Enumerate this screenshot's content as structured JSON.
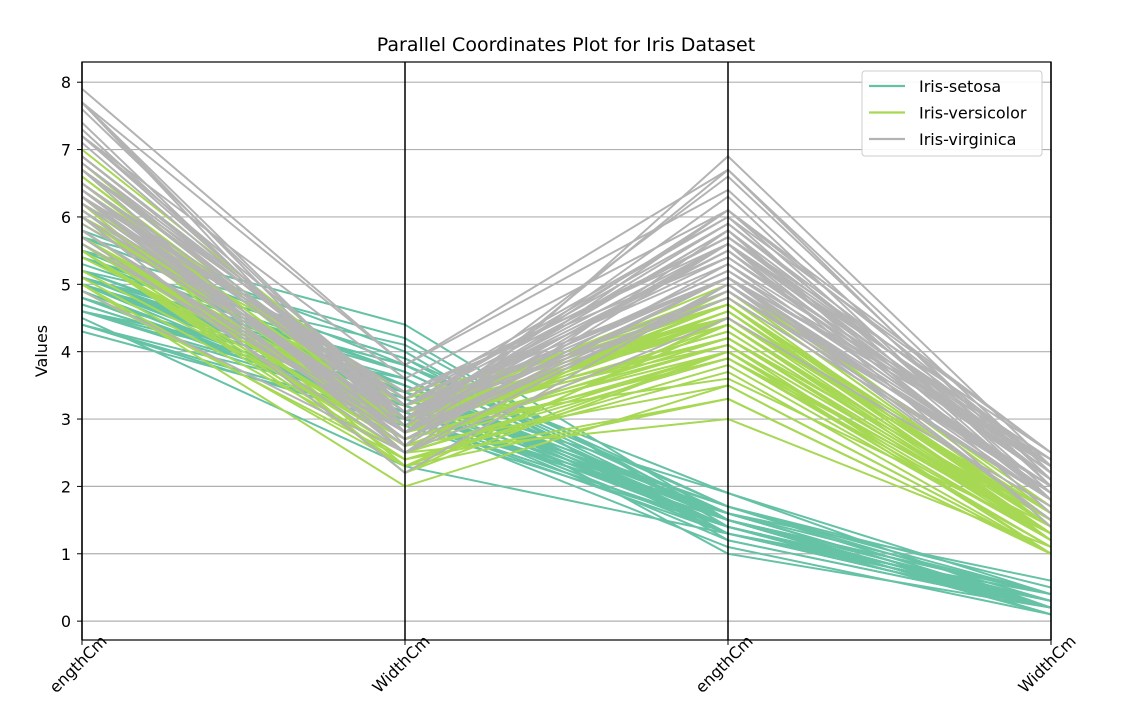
{
  "chart_data": {
    "type": "line",
    "title": "Parallel Coordinates Plot for Iris Dataset",
    "xlabel": "",
    "ylabel": "Values",
    "x": [
      "SepalLengthCm",
      "SepalWidthCm",
      "PetalLengthCm",
      "PetalWidthCm"
    ],
    "x_tick_labels_visible": [
      "engthCm",
      "WidthCm",
      "engthCm",
      "WidthCm"
    ],
    "ylim": [
      -0.28,
      8.3
    ],
    "yticks": [
      "0",
      "1",
      "2",
      "3",
      "4",
      "5",
      "6",
      "7",
      "8"
    ],
    "grid": "horizontal",
    "legend_position": "top-right",
    "series": [
      {
        "name": "Iris-setosa",
        "color": "#66c2a5",
        "lines": [
          [
            5.1,
            3.5,
            1.4,
            0.2
          ],
          [
            4.9,
            3.0,
            1.4,
            0.2
          ],
          [
            4.7,
            3.2,
            1.3,
            0.2
          ],
          [
            4.6,
            3.1,
            1.5,
            0.2
          ],
          [
            5.0,
            3.6,
            1.4,
            0.2
          ],
          [
            5.4,
            3.9,
            1.7,
            0.4
          ],
          [
            4.6,
            3.4,
            1.4,
            0.3
          ],
          [
            5.0,
            3.4,
            1.5,
            0.2
          ],
          [
            4.4,
            2.9,
            1.4,
            0.2
          ],
          [
            4.9,
            3.1,
            1.5,
            0.1
          ],
          [
            5.4,
            3.7,
            1.5,
            0.2
          ],
          [
            4.8,
            3.4,
            1.6,
            0.2
          ],
          [
            4.8,
            3.0,
            1.4,
            0.1
          ],
          [
            4.3,
            3.0,
            1.1,
            0.1
          ],
          [
            5.8,
            4.0,
            1.2,
            0.2
          ],
          [
            5.7,
            4.4,
            1.5,
            0.4
          ],
          [
            5.4,
            3.9,
            1.3,
            0.4
          ],
          [
            5.1,
            3.5,
            1.4,
            0.3
          ],
          [
            5.7,
            3.8,
            1.7,
            0.3
          ],
          [
            5.1,
            3.8,
            1.5,
            0.3
          ],
          [
            5.4,
            3.4,
            1.7,
            0.2
          ],
          [
            5.1,
            3.7,
            1.5,
            0.4
          ],
          [
            4.6,
            3.6,
            1.0,
            0.2
          ],
          [
            5.1,
            3.3,
            1.7,
            0.5
          ],
          [
            4.8,
            3.4,
            1.9,
            0.2
          ],
          [
            5.0,
            3.0,
            1.6,
            0.2
          ],
          [
            5.0,
            3.4,
            1.6,
            0.4
          ],
          [
            5.2,
            3.5,
            1.5,
            0.2
          ],
          [
            5.2,
            3.4,
            1.4,
            0.2
          ],
          [
            4.7,
            3.2,
            1.6,
            0.2
          ],
          [
            4.8,
            3.1,
            1.6,
            0.2
          ],
          [
            5.4,
            3.4,
            1.5,
            0.4
          ],
          [
            5.2,
            4.1,
            1.5,
            0.1
          ],
          [
            5.5,
            4.2,
            1.4,
            0.2
          ],
          [
            4.9,
            3.1,
            1.5,
            0.1
          ],
          [
            5.0,
            3.2,
            1.2,
            0.2
          ],
          [
            5.5,
            3.5,
            1.3,
            0.2
          ],
          [
            4.9,
            3.1,
            1.5,
            0.1
          ],
          [
            4.4,
            3.0,
            1.3,
            0.2
          ],
          [
            5.1,
            3.4,
            1.5,
            0.2
          ],
          [
            5.0,
            3.5,
            1.3,
            0.3
          ],
          [
            4.5,
            2.3,
            1.3,
            0.3
          ],
          [
            4.4,
            3.2,
            1.3,
            0.2
          ],
          [
            5.0,
            3.5,
            1.6,
            0.6
          ],
          [
            5.1,
            3.8,
            1.9,
            0.4
          ],
          [
            4.8,
            3.0,
            1.4,
            0.3
          ],
          [
            5.1,
            3.8,
            1.6,
            0.2
          ],
          [
            4.6,
            3.2,
            1.4,
            0.2
          ],
          [
            5.3,
            3.7,
            1.5,
            0.2
          ],
          [
            5.0,
            3.3,
            1.4,
            0.2
          ]
        ]
      },
      {
        "name": "Iris-versicolor",
        "color": "#a6d854",
        "lines": [
          [
            7.0,
            3.2,
            4.7,
            1.4
          ],
          [
            6.4,
            3.2,
            4.5,
            1.5
          ],
          [
            6.9,
            3.1,
            4.9,
            1.5
          ],
          [
            5.5,
            2.3,
            4.0,
            1.3
          ],
          [
            6.5,
            2.8,
            4.6,
            1.5
          ],
          [
            5.7,
            2.8,
            4.5,
            1.3
          ],
          [
            6.3,
            3.3,
            4.7,
            1.6
          ],
          [
            4.9,
            2.4,
            3.3,
            1.0
          ],
          [
            6.6,
            2.9,
            4.6,
            1.3
          ],
          [
            5.2,
            2.7,
            3.9,
            1.4
          ],
          [
            5.0,
            2.0,
            3.5,
            1.0
          ],
          [
            5.9,
            3.0,
            4.2,
            1.5
          ],
          [
            6.0,
            2.2,
            4.0,
            1.0
          ],
          [
            6.1,
            2.9,
            4.7,
            1.4
          ],
          [
            5.6,
            2.9,
            3.6,
            1.3
          ],
          [
            6.7,
            3.1,
            4.4,
            1.4
          ],
          [
            5.6,
            3.0,
            4.5,
            1.5
          ],
          [
            5.8,
            2.7,
            4.1,
            1.0
          ],
          [
            6.2,
            2.2,
            4.5,
            1.5
          ],
          [
            5.6,
            2.5,
            3.9,
            1.1
          ],
          [
            5.9,
            3.2,
            4.8,
            1.8
          ],
          [
            6.1,
            2.8,
            4.0,
            1.3
          ],
          [
            6.3,
            2.5,
            4.9,
            1.5
          ],
          [
            6.1,
            2.8,
            4.7,
            1.2
          ],
          [
            6.4,
            2.9,
            4.3,
            1.3
          ],
          [
            6.6,
            3.0,
            4.4,
            1.4
          ],
          [
            6.8,
            2.8,
            4.8,
            1.4
          ],
          [
            6.7,
            3.0,
            5.0,
            1.7
          ],
          [
            6.0,
            2.9,
            4.5,
            1.5
          ],
          [
            5.7,
            2.6,
            3.5,
            1.0
          ],
          [
            5.5,
            2.4,
            3.8,
            1.1
          ],
          [
            5.5,
            2.4,
            3.7,
            1.0
          ],
          [
            5.8,
            2.7,
            3.9,
            1.2
          ],
          [
            6.0,
            2.7,
            5.1,
            1.6
          ],
          [
            5.4,
            3.0,
            4.5,
            1.5
          ],
          [
            6.0,
            3.4,
            4.5,
            1.6
          ],
          [
            6.7,
            3.1,
            4.7,
            1.5
          ],
          [
            6.3,
            2.3,
            4.4,
            1.3
          ],
          [
            5.6,
            3.0,
            4.1,
            1.3
          ],
          [
            5.5,
            2.5,
            4.0,
            1.3
          ],
          [
            5.5,
            2.6,
            4.4,
            1.2
          ],
          [
            6.1,
            3.0,
            4.6,
            1.4
          ],
          [
            5.8,
            2.6,
            4.0,
            1.2
          ],
          [
            5.0,
            2.3,
            3.3,
            1.0
          ],
          [
            5.6,
            2.7,
            4.2,
            1.3
          ],
          [
            5.7,
            3.0,
            4.2,
            1.2
          ],
          [
            5.7,
            2.9,
            4.2,
            1.3
          ],
          [
            6.2,
            2.9,
            4.3,
            1.3
          ],
          [
            5.1,
            2.5,
            3.0,
            1.1
          ],
          [
            5.7,
            2.8,
            4.1,
            1.3
          ]
        ]
      },
      {
        "name": "Iris-virginica",
        "color": "#b3b3b3",
        "lines": [
          [
            6.3,
            3.3,
            6.0,
            2.5
          ],
          [
            5.8,
            2.7,
            5.1,
            1.9
          ],
          [
            7.1,
            3.0,
            5.9,
            2.1
          ],
          [
            6.3,
            2.9,
            5.6,
            1.8
          ],
          [
            6.5,
            3.0,
            5.8,
            2.2
          ],
          [
            7.6,
            3.0,
            6.6,
            2.1
          ],
          [
            4.9,
            2.5,
            4.5,
            1.7
          ],
          [
            7.3,
            2.9,
            6.3,
            1.8
          ],
          [
            6.7,
            2.5,
            5.8,
            1.8
          ],
          [
            7.2,
            3.6,
            6.1,
            2.5
          ],
          [
            6.5,
            3.2,
            5.1,
            2.0
          ],
          [
            6.4,
            2.7,
            5.3,
            1.9
          ],
          [
            6.8,
            3.0,
            5.5,
            2.1
          ],
          [
            5.7,
            2.5,
            5.0,
            2.0
          ],
          [
            5.8,
            2.8,
            5.1,
            2.4
          ],
          [
            6.4,
            3.2,
            5.3,
            2.3
          ],
          [
            6.5,
            3.0,
            5.5,
            1.8
          ],
          [
            7.7,
            3.8,
            6.7,
            2.2
          ],
          [
            7.7,
            2.6,
            6.9,
            2.3
          ],
          [
            6.0,
            2.2,
            5.0,
            1.5
          ],
          [
            6.9,
            3.2,
            5.7,
            2.3
          ],
          [
            5.6,
            2.8,
            4.9,
            2.0
          ],
          [
            7.7,
            2.8,
            6.7,
            2.0
          ],
          [
            6.3,
            2.7,
            4.9,
            1.8
          ],
          [
            6.7,
            3.3,
            5.7,
            2.1
          ],
          [
            7.2,
            3.2,
            6.0,
            1.8
          ],
          [
            6.2,
            2.8,
            4.8,
            1.8
          ],
          [
            6.1,
            3.0,
            4.9,
            1.8
          ],
          [
            6.4,
            2.8,
            5.6,
            2.1
          ],
          [
            7.2,
            3.0,
            5.8,
            1.6
          ],
          [
            7.4,
            2.8,
            6.1,
            1.9
          ],
          [
            7.9,
            3.8,
            6.4,
            2.0
          ],
          [
            6.4,
            2.8,
            5.6,
            2.2
          ],
          [
            6.3,
            2.8,
            5.1,
            1.5
          ],
          [
            6.1,
            2.6,
            5.6,
            1.4
          ],
          [
            7.7,
            3.0,
            6.1,
            2.3
          ],
          [
            6.3,
            3.4,
            5.6,
            2.4
          ],
          [
            6.4,
            3.1,
            5.5,
            1.8
          ],
          [
            6.0,
            3.0,
            4.8,
            1.8
          ],
          [
            6.9,
            3.1,
            5.4,
            2.1
          ],
          [
            6.7,
            3.1,
            5.6,
            2.4
          ],
          [
            6.9,
            3.1,
            5.1,
            2.3
          ],
          [
            5.8,
            2.7,
            5.1,
            1.9
          ],
          [
            6.8,
            3.2,
            5.9,
            2.3
          ],
          [
            6.7,
            3.3,
            5.7,
            2.5
          ],
          [
            6.7,
            3.0,
            5.2,
            2.3
          ],
          [
            6.3,
            2.5,
            5.0,
            1.9
          ],
          [
            6.5,
            3.0,
            5.2,
            2.0
          ],
          [
            6.2,
            3.4,
            5.4,
            2.3
          ],
          [
            5.9,
            3.0,
            5.1,
            1.8
          ]
        ]
      }
    ]
  }
}
